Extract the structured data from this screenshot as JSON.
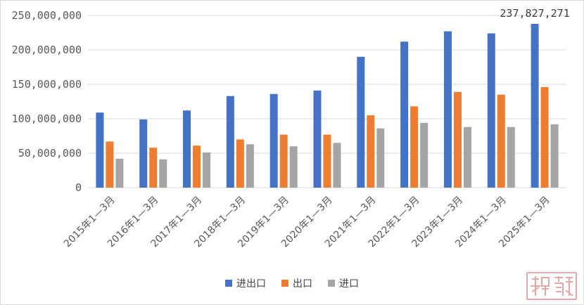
{
  "chart_data": {
    "type": "bar",
    "categories": [
      "2015年1—3月",
      "2016年1—3月",
      "2017年1—3月",
      "2018年1—3月",
      "2019年1—3月",
      "2020年1—3月",
      "2021年1—3月",
      "2022年1—3月",
      "2023年1—3月",
      "2024年1—3月",
      "2025年1—3月"
    ],
    "series": [
      {
        "name": "进出口",
        "color": "#4472c4",
        "values": [
          109000000,
          99000000,
          112000000,
          133000000,
          136000000,
          141000000,
          190000000,
          212000000,
          227000000,
          224000000,
          237827271
        ]
      },
      {
        "name": "出口",
        "color": "#ed7d31",
        "values": [
          67000000,
          58000000,
          61000000,
          70000000,
          77000000,
          77000000,
          105000000,
          118000000,
          139000000,
          135000000,
          146000000
        ]
      },
      {
        "name": "进口",
        "color": "#a5a5a5",
        "values": [
          42000000,
          41000000,
          51000000,
          63000000,
          60000000,
          65000000,
          86000000,
          94000000,
          88000000,
          88000000,
          92000000
        ]
      }
    ],
    "ylim": [
      0,
      250000000
    ],
    "yticks": [
      "0",
      "50,000,000",
      "100,000,000",
      "150,000,000",
      "200,000,000",
      "250,000,000"
    ],
    "data_label": "237,827,271",
    "grid": true,
    "legend_position": "bottom"
  },
  "legend": {
    "s0": "进出口",
    "s1": "出口",
    "s2": "进口"
  },
  "colors": {
    "export_import": "#4472c4",
    "export": "#ed7d31",
    "import": "#a5a5a5",
    "gridline": "#d9d9d9"
  }
}
